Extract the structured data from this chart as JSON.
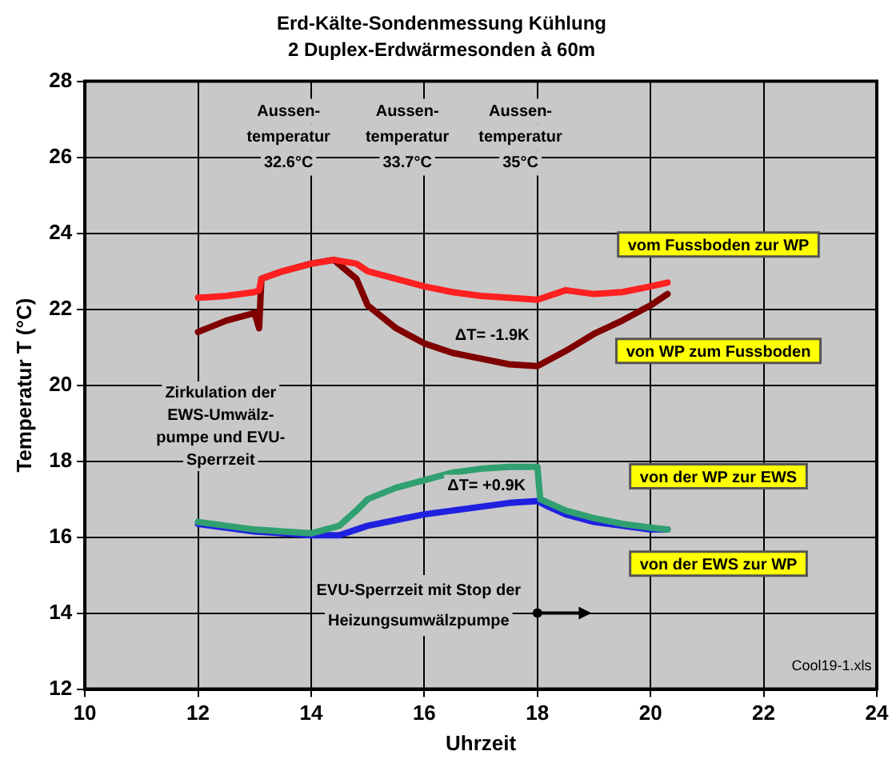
{
  "chart_data": {
    "type": "line",
    "title": "Erd-Kälte-Sondenmessung Kühlung",
    "subtitle": "2 Duplex-Erdwärmesonden à 60m",
    "xlabel": "Uhrzeit",
    "ylabel": "Temperatur T (°C)",
    "xlim": [
      10,
      24
    ],
    "xticks": [
      10,
      12,
      14,
      16,
      18,
      20,
      22,
      24
    ],
    "ylim": [
      12,
      28
    ],
    "yticks": [
      12,
      14,
      16,
      18,
      20,
      22,
      24,
      26,
      28
    ],
    "grid": true,
    "legend": false,
    "marker": "none",
    "line_style": "solid",
    "series": [
      {
        "name": "vom Fussboden zur WP",
        "color": "#ff2020",
        "x": [
          12,
          12.5,
          13,
          13.08,
          13.12,
          13.5,
          14,
          14.4,
          14.8,
          15,
          15.5,
          16,
          16.5,
          17,
          17.5,
          18,
          18.5,
          19,
          19.5,
          20,
          20.3
        ],
        "values": [
          22.3,
          22.35,
          22.45,
          22.5,
          22.8,
          23.0,
          23.2,
          23.3,
          23.2,
          23.0,
          22.8,
          22.6,
          22.45,
          22.35,
          22.3,
          22.25,
          22.5,
          22.4,
          22.45,
          22.6,
          22.7
        ]
      },
      {
        "name": "von WP zum Fussboden",
        "color": "#800000",
        "x": [
          12,
          12.5,
          13,
          13.08,
          13.12,
          13.5,
          14,
          14.4,
          14.8,
          15,
          15.5,
          16,
          16.5,
          17,
          17.5,
          18,
          18.5,
          19,
          19.5,
          20,
          20.3
        ],
        "values": [
          21.4,
          21.7,
          21.9,
          21.5,
          22.8,
          23.0,
          23.2,
          23.3,
          22.8,
          22.1,
          21.5,
          21.1,
          20.85,
          20.7,
          20.55,
          20.5,
          20.9,
          21.35,
          21.7,
          22.1,
          22.4
        ]
      },
      {
        "name": "von der WP zur EWS",
        "color": "#30a070",
        "x": [
          12,
          12.5,
          13,
          13.5,
          14,
          14.5,
          14.8,
          15,
          15.5,
          16,
          16.5,
          17,
          17.5,
          18,
          18.05,
          18.5,
          19,
          19.5,
          20,
          20.3
        ],
        "values": [
          16.4,
          16.3,
          16.2,
          16.15,
          16.1,
          16.3,
          16.7,
          17.0,
          17.3,
          17.5,
          17.7,
          17.8,
          17.85,
          17.85,
          17.0,
          16.7,
          16.5,
          16.35,
          16.25,
          16.2
        ]
      },
      {
        "name": "von der EWS zur WP",
        "color": "#2020e0",
        "x": [
          12,
          12.5,
          13,
          13.5,
          14,
          14.5,
          15,
          15.5,
          16,
          16.5,
          17,
          17.5,
          18,
          18.2,
          18.5,
          19,
          19.5,
          20,
          20.3
        ],
        "values": [
          16.35,
          16.25,
          16.15,
          16.1,
          16.05,
          16.05,
          16.3,
          16.45,
          16.6,
          16.7,
          16.8,
          16.9,
          16.95,
          16.8,
          16.6,
          16.4,
          16.3,
          16.2,
          16.2
        ]
      }
    ],
    "annotations": [
      "Aussen-\ntemperatur\n32.6°C",
      "Aussen-\ntemperatur\n33.7°C",
      "Aussen-\ntemperatur\n35°C",
      "ΔT= -1.9K",
      "ΔT= +0.9K",
      "Zirkulation der\nEWS-Umwälz-\npumpe und EVU-\nSperrzeit",
      {
        "text": "EVU-Sperrzeit mit Stop der\nHeizungsumwälzpumpe",
        "x": 18,
        "y": 14
      },
      "Cool19-1.xls"
    ]
  }
}
